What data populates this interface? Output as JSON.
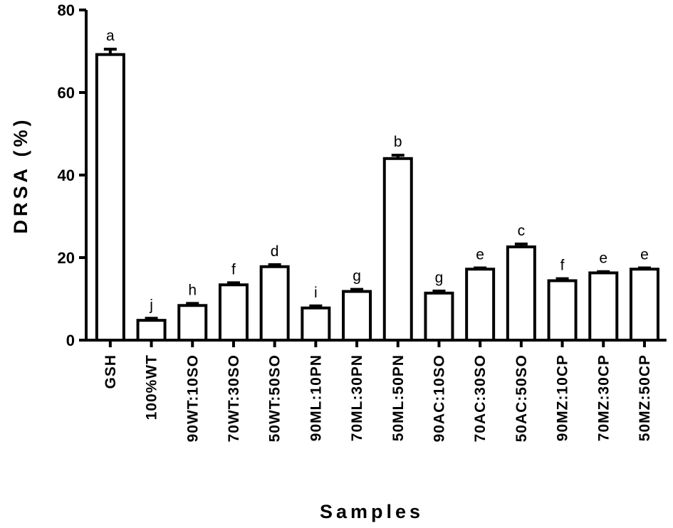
{
  "chart_data": {
    "type": "bar",
    "xlabel": "Samples",
    "ylabel": "DRSA (%)",
    "ylim": [
      0,
      80
    ],
    "yticks": [
      "0",
      "20",
      "40",
      "60",
      "80"
    ],
    "grid": false,
    "legend": "none",
    "categories": [
      "GSH",
      "100%WT",
      "90WT:10SO",
      "70WT:30SO",
      "50WT:50SO",
      "90ML:10PN",
      "70ML:30PN",
      "50ML:50PN",
      "90AC:10SO",
      "70AC:30SO",
      "50AC:50SO",
      "90MZ:10CP",
      "70MZ:30CP",
      "50MZ:50CP"
    ],
    "values": [
      69.2,
      4.8,
      8.4,
      13.4,
      17.8,
      7.8,
      11.8,
      44.0,
      11.4,
      17.2,
      22.6,
      14.4,
      16.3,
      17.2
    ],
    "errors": [
      1.3,
      0.5,
      0.5,
      0.5,
      0.5,
      0.5,
      0.5,
      0.8,
      0.5,
      0.3,
      0.7,
      0.5,
      0.3,
      0.3
    ],
    "significance_letters": [
      "a",
      "j",
      "h",
      "f",
      "d",
      "i",
      "g",
      "b",
      "g",
      "e",
      "c",
      "f",
      "e",
      "e"
    ],
    "colors": {
      "bar_fill": "#ffffff",
      "bar_stroke": "#000000",
      "axis": "#000000"
    }
  }
}
